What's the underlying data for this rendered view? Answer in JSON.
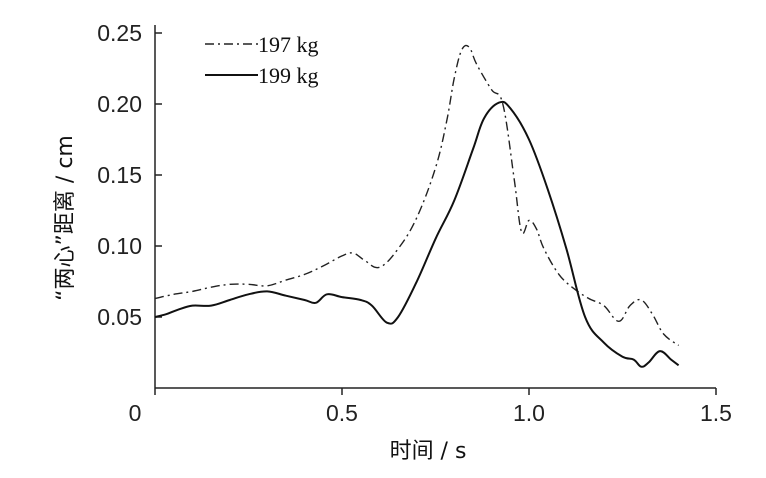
{
  "chart_data": {
    "type": "line",
    "title": "",
    "xlabel": "时间 / s",
    "ylabel": "“两心”距离 / cm",
    "xlim": [
      0,
      1.5
    ],
    "ylim": [
      0,
      0.25
    ],
    "xticks": [
      0,
      0.5,
      1.0,
      1.5
    ],
    "xtick_labels": [
      "0",
      "0.5",
      "1.0",
      "1.5"
    ],
    "yticks": [
      0.05,
      0.1,
      0.15,
      0.2,
      0.25
    ],
    "ytick_labels": [
      "0.05",
      "0.10",
      "0.15",
      "0.20",
      "0.25"
    ],
    "grid": false,
    "legend_position": "top-left",
    "series": [
      {
        "name": "197 kg",
        "style": "dash-dot",
        "color": "#222222",
        "x": [
          0.0,
          0.05,
          0.1,
          0.15,
          0.2,
          0.25,
          0.3,
          0.35,
          0.4,
          0.45,
          0.5,
          0.53,
          0.56,
          0.6,
          0.65,
          0.7,
          0.75,
          0.78,
          0.8,
          0.82,
          0.84,
          0.86,
          0.9,
          0.93,
          0.96,
          0.98,
          1.0,
          1.02,
          1.04,
          1.08,
          1.12,
          1.16,
          1.2,
          1.24,
          1.27,
          1.3,
          1.33,
          1.36,
          1.4
        ],
        "y": [
          0.063,
          0.066,
          0.068,
          0.071,
          0.073,
          0.073,
          0.072,
          0.076,
          0.08,
          0.086,
          0.093,
          0.095,
          0.09,
          0.085,
          0.098,
          0.12,
          0.155,
          0.188,
          0.218,
          0.238,
          0.24,
          0.228,
          0.21,
          0.2,
          0.148,
          0.11,
          0.118,
          0.112,
          0.098,
          0.08,
          0.07,
          0.063,
          0.058,
          0.047,
          0.058,
          0.062,
          0.052,
          0.038,
          0.03
        ]
      },
      {
        "name": "199 kg",
        "style": "solid",
        "color": "#111111",
        "x": [
          0.0,
          0.03,
          0.06,
          0.1,
          0.15,
          0.2,
          0.25,
          0.3,
          0.35,
          0.4,
          0.43,
          0.46,
          0.5,
          0.55,
          0.58,
          0.62,
          0.65,
          0.7,
          0.75,
          0.8,
          0.85,
          0.88,
          0.92,
          0.95,
          1.0,
          1.05,
          1.1,
          1.15,
          1.2,
          1.25,
          1.28,
          1.3,
          1.32,
          1.35,
          1.38,
          1.4
        ],
        "y": [
          0.05,
          0.052,
          0.055,
          0.058,
          0.058,
          0.062,
          0.066,
          0.068,
          0.065,
          0.062,
          0.06,
          0.066,
          0.064,
          0.062,
          0.058,
          0.046,
          0.05,
          0.075,
          0.105,
          0.132,
          0.168,
          0.19,
          0.201,
          0.197,
          0.175,
          0.14,
          0.098,
          0.05,
          0.032,
          0.022,
          0.02,
          0.015,
          0.018,
          0.026,
          0.02,
          0.016
        ]
      }
    ]
  }
}
